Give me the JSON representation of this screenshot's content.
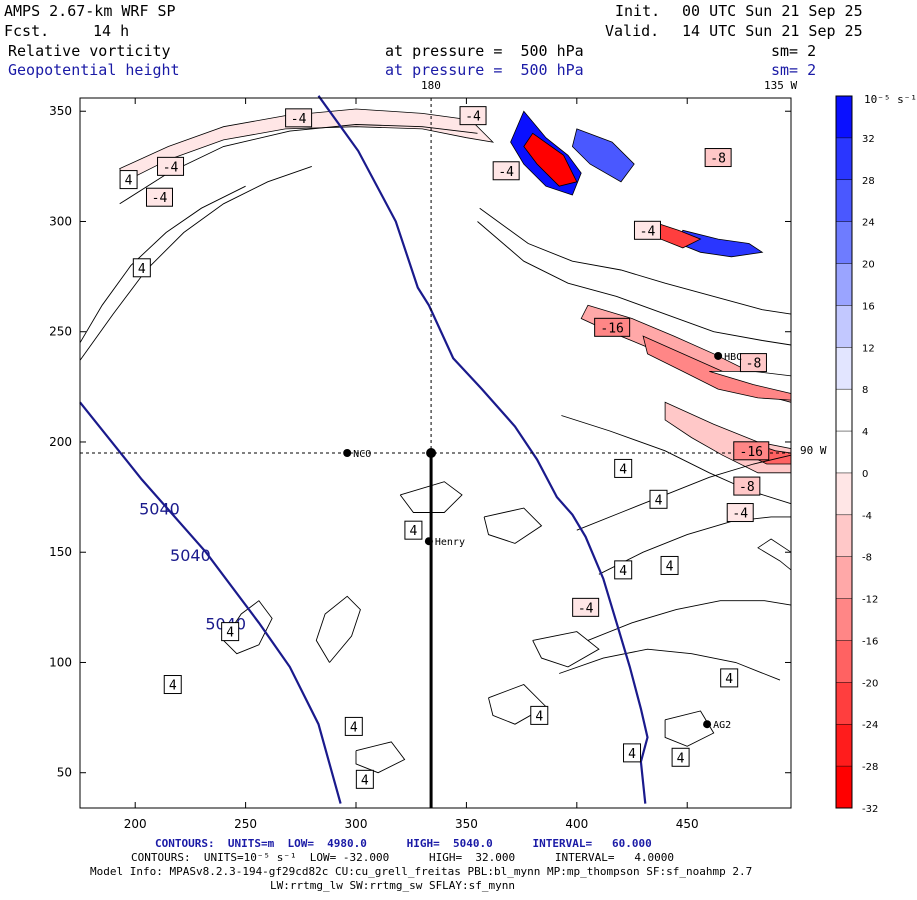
{
  "header": {
    "model_title": "AMPS 2.67-km WRF SP",
    "forecast_label": "Fcst.",
    "forecast_hours": "14 h",
    "init_label": "Init.",
    "init_time": "00 UTC Sun 21 Sep 25",
    "valid_label": "Valid.",
    "valid_time": "14 UTC Sun 21 Sep 25",
    "field1_name": "Relative vorticity",
    "field1_level": "at pressure =  500 hPa",
    "field1_sm": "sm= 2",
    "field2_name": "Geopotential height",
    "field2_level": "at pressure =  500 hPa",
    "field2_sm": "sm= 2"
  },
  "map_labels": {
    "lon_180": "180",
    "lon_135w": "135 W",
    "lat_90w": "90 W",
    "stations": [
      {
        "name": "NCO",
        "x": 296,
        "y": 195
      },
      {
        "name": "Henry",
        "x": 333,
        "y": 155
      },
      {
        "name": "AG2",
        "x": 459,
        "y": 72
      },
      {
        "name": "HBC",
        "x": 464,
        "y": 239
      }
    ]
  },
  "footer": {
    "line1": "CONTOURS:  UNITS=m  LOW=  4980.0      HIGH=  5040.0      INTERVAL=   60.000",
    "line2": "CONTOURS:  UNITS=10⁻⁵ s⁻¹  LOW= -32.000      HIGH=  32.000      INTERVAL=   4.0000",
    "line3": "Model Info: MPASv8.2.3-194-gf29cd82c CU:cu_grell_freitas PBL:bl_mynn MP:mp_thompson SF:sf_noahmp 2.7",
    "line4": "LW:rrtmg_lw SW:rrtmg_sw SFLAY:sf_mynn"
  },
  "chart_data": {
    "type": "contour",
    "title": "Relative vorticity and Geopotential height at 500 hPa",
    "xlim": [
      175,
      497
    ],
    "ylim": [
      34,
      356
    ],
    "x_ticks": [
      200,
      250,
      300,
      350,
      400,
      450
    ],
    "y_ticks": [
      50,
      100,
      150,
      200,
      250,
      300,
      350
    ],
    "colorbar": {
      "units_label": "10⁻⁵ s⁻¹",
      "ticks": [
        32,
        28,
        24,
        20,
        16,
        12,
        8,
        4,
        0,
        -4,
        -8,
        -12,
        -16,
        -20,
        -24,
        -28,
        -32
      ],
      "colors": [
        "#0a10ff",
        "#2a36ff",
        "#4a58ff",
        "#6e7cff",
        "#9aa4ff",
        "#c2c8ff",
        "#e2e5ff",
        "#ffffff",
        "#ffffff",
        "#ffe6e6",
        "#ffc8c8",
        "#ffa8a8",
        "#ff8686",
        "#ff6262",
        "#ff3e3e",
        "#ff1c1c",
        "#ff0000"
      ]
    },
    "height_contours": [
      {
        "label": "5040",
        "points": [
          [
            175,
            218
          ],
          [
            203,
            183
          ],
          [
            232,
            150
          ],
          [
            256,
            118
          ],
          [
            270,
            98
          ],
          [
            283,
            72
          ],
          [
            293,
            36
          ]
        ]
      },
      {
        "label": "",
        "points": [
          [
            283,
            357
          ],
          [
            301,
            332
          ],
          [
            318,
            300
          ],
          [
            328,
            270
          ],
          [
            333,
            262
          ],
          [
            344,
            238
          ],
          [
            357,
            224
          ],
          [
            372,
            207
          ],
          [
            382,
            192
          ],
          [
            391,
            175
          ],
          [
            398,
            167
          ],
          [
            404,
            157
          ],
          [
            412,
            138
          ],
          [
            418,
            118
          ],
          [
            424,
            98
          ],
          [
            429,
            79
          ],
          [
            432,
            66
          ],
          [
            429,
            55
          ],
          [
            431,
            36
          ]
        ]
      }
    ],
    "height_labels": [
      {
        "text": "5040",
        "x": 211,
        "y": 167
      },
      {
        "text": "5040",
        "x": 225,
        "y": 146
      },
      {
        "text": "5040",
        "x": 241,
        "y": 115
      }
    ],
    "vorticity_labels": [
      {
        "text": "-4",
        "x": 274,
        "y": 347
      },
      {
        "text": "-4",
        "x": 353,
        "y": 348
      },
      {
        "text": "-4",
        "x": 216,
        "y": 325
      },
      {
        "text": "-4",
        "x": 211,
        "y": 311
      },
      {
        "text": "4",
        "x": 197,
        "y": 319
      },
      {
        "text": "4",
        "x": 203,
        "y": 279
      },
      {
        "text": "-4",
        "x": 368,
        "y": 323
      },
      {
        "text": "-8",
        "x": 464,
        "y": 329
      },
      {
        "text": "-4",
        "x": 432,
        "y": 296
      },
      {
        "text": "-16",
        "x": 416,
        "y": 252
      },
      {
        "text": "-8",
        "x": 480,
        "y": 236
      },
      {
        "text": "-16",
        "x": 479,
        "y": 196
      },
      {
        "text": "-8",
        "x": 477,
        "y": 180
      },
      {
        "text": "-4",
        "x": 474,
        "y": 168
      },
      {
        "text": "4",
        "x": 421,
        "y": 188
      },
      {
        "text": "4",
        "x": 437,
        "y": 174
      },
      {
        "text": "4",
        "x": 326,
        "y": 160
      },
      {
        "text": "4",
        "x": 421,
        "y": 142
      },
      {
        "text": "4",
        "x": 442,
        "y": 144
      },
      {
        "text": "-4",
        "x": 404,
        "y": 125
      },
      {
        "text": "4",
        "x": 469,
        "y": 93
      },
      {
        "text": "4",
        "x": 383,
        "y": 76
      },
      {
        "text": "4",
        "x": 425,
        "y": 59
      },
      {
        "text": "4",
        "x": 447,
        "y": 57
      },
      {
        "text": "4",
        "x": 299,
        "y": 71
      },
      {
        "text": "4",
        "x": 304,
        "y": 47
      },
      {
        "text": "4",
        "x": 243,
        "y": 114
      },
      {
        "text": "4",
        "x": 217,
        "y": 90
      }
    ],
    "vorticity_regions": [
      {
        "value": -4,
        "points": [
          [
            193,
            324
          ],
          [
            215,
            334
          ],
          [
            240,
            343
          ],
          [
            268,
            348
          ],
          [
            300,
            351
          ],
          [
            330,
            349
          ],
          [
            352,
            346
          ],
          [
            362,
            336
          ],
          [
            350,
            338
          ],
          [
            330,
            342
          ],
          [
            300,
            343
          ],
          [
            268,
            342
          ],
          [
            240,
            337
          ],
          [
            215,
            328
          ],
          [
            195,
            318
          ]
        ]
      },
      {
        "value": -12,
        "points": [
          [
            405,
            262
          ],
          [
            425,
            256
          ],
          [
            444,
            248
          ],
          [
            462,
            240
          ],
          [
            478,
            232
          ],
          [
            497,
            228
          ],
          [
            497,
            218
          ],
          [
            482,
            222
          ],
          [
            466,
            226
          ],
          [
            450,
            234
          ],
          [
            432,
            243
          ],
          [
            415,
            250
          ],
          [
            402,
            256
          ]
        ]
      },
      {
        "value": -16,
        "points": [
          [
            430,
            248
          ],
          [
            448,
            240
          ],
          [
            466,
            232
          ],
          [
            486,
            226
          ],
          [
            497,
            224
          ],
          [
            497,
            219
          ],
          [
            482,
            220
          ],
          [
            464,
            224
          ],
          [
            448,
            232
          ],
          [
            432,
            240
          ]
        ]
      },
      {
        "value": -8,
        "points": [
          [
            440,
            218
          ],
          [
            462,
            208
          ],
          [
            482,
            200
          ],
          [
            497,
            197
          ],
          [
            497,
            186
          ],
          [
            482,
            186
          ],
          [
            466,
            194
          ],
          [
            452,
            202
          ],
          [
            440,
            210
          ]
        ]
      },
      {
        "value": -20,
        "points": [
          [
            478,
            200
          ],
          [
            490,
            196
          ],
          [
            497,
            195
          ],
          [
            497,
            190
          ],
          [
            486,
            190
          ],
          [
            478,
            194
          ]
        ]
      },
      {
        "value": 32,
        "points": [
          [
            376,
            350
          ],
          [
            386,
            338
          ],
          [
            396,
            330
          ],
          [
            402,
            322
          ],
          [
            398,
            312
          ],
          [
            386,
            316
          ],
          [
            376,
            326
          ],
          [
            370,
            336
          ]
        ]
      },
      {
        "value": 24,
        "points": [
          [
            400,
            342
          ],
          [
            416,
            336
          ],
          [
            426,
            326
          ],
          [
            420,
            318
          ],
          [
            406,
            326
          ],
          [
            398,
            334
          ]
        ]
      },
      {
        "value": -32,
        "points": [
          [
            380,
            340
          ],
          [
            394,
            330
          ],
          [
            400,
            318
          ],
          [
            392,
            316
          ],
          [
            382,
            326
          ],
          [
            376,
            334
          ]
        ]
      },
      {
        "value": 28,
        "points": [
          [
            448,
            296
          ],
          [
            464,
            292
          ],
          [
            478,
            290
          ],
          [
            484,
            286
          ],
          [
            470,
            284
          ],
          [
            456,
            286
          ],
          [
            446,
            290
          ]
        ]
      },
      {
        "value": -24,
        "points": [
          [
            434,
            300
          ],
          [
            446,
            296
          ],
          [
            456,
            292
          ],
          [
            448,
            288
          ],
          [
            438,
            292
          ]
        ]
      },
      {
        "value": 4,
        "points": [
          [
            460,
            232
          ],
          [
            480,
            226
          ],
          [
            497,
            222
          ],
          [
            497,
            230
          ],
          [
            480,
            232
          ]
        ]
      },
      {
        "value": 4,
        "points": [
          [
            482,
            152
          ],
          [
            492,
            146
          ],
          [
            497,
            142
          ],
          [
            497,
            150
          ],
          [
            488,
            156
          ]
        ]
      }
    ],
    "thin_contours": [
      [
        [
          193,
          308
        ],
        [
          215,
          322
        ],
        [
          240,
          334
        ],
        [
          270,
          341
        ],
        [
          300,
          344
        ],
        [
          330,
          343
        ],
        [
          355,
          340
        ]
      ],
      [
        [
          175,
          237
        ],
        [
          190,
          258
        ],
        [
          205,
          278
        ],
        [
          222,
          295
        ],
        [
          240,
          308
        ],
        [
          260,
          318
        ],
        [
          280,
          325
        ]
      ],
      [
        [
          175,
          245
        ],
        [
          185,
          262
        ],
        [
          198,
          280
        ],
        [
          214,
          295
        ],
        [
          230,
          306
        ],
        [
          250,
          316
        ]
      ],
      [
        [
          356,
          306
        ],
        [
          378,
          290
        ],
        [
          398,
          282
        ],
        [
          420,
          278
        ],
        [
          440,
          272
        ],
        [
          462,
          266
        ],
        [
          484,
          260
        ],
        [
          497,
          258
        ]
      ],
      [
        [
          355,
          300
        ],
        [
          376,
          282
        ],
        [
          396,
          272
        ],
        [
          418,
          266
        ],
        [
          440,
          258
        ],
        [
          462,
          250
        ],
        [
          484,
          246
        ],
        [
          497,
          244
        ]
      ],
      [
        [
          393,
          212
        ],
        [
          415,
          205
        ],
        [
          440,
          196
        ],
        [
          460,
          186
        ],
        [
          478,
          178
        ],
        [
          497,
          172
        ]
      ],
      [
        [
          400,
          160
        ],
        [
          420,
          168
        ],
        [
          440,
          176
        ],
        [
          460,
          184
        ],
        [
          480,
          190
        ],
        [
          497,
          194
        ]
      ],
      [
        [
          410,
          140
        ],
        [
          430,
          150
        ],
        [
          450,
          158
        ],
        [
          470,
          164
        ],
        [
          488,
          166
        ],
        [
          497,
          166
        ]
      ],
      [
        [
          405,
          110
        ],
        [
          425,
          118
        ],
        [
          445,
          124
        ],
        [
          465,
          128
        ],
        [
          485,
          128
        ],
        [
          497,
          126
        ]
      ],
      [
        [
          392,
          95
        ],
        [
          412,
          102
        ],
        [
          432,
          106
        ],
        [
          452,
          104
        ],
        [
          472,
          100
        ],
        [
          492,
          92
        ]
      ],
      [
        [
          288,
          100
        ],
        [
          298,
          112
        ],
        [
          302,
          124
        ],
        [
          296,
          130
        ],
        [
          286,
          122
        ],
        [
          282,
          110
        ],
        [
          288,
          100
        ]
      ],
      [
        [
          240,
          110
        ],
        [
          248,
          122
        ],
        [
          256,
          128
        ],
        [
          262,
          120
        ],
        [
          256,
          108
        ],
        [
          246,
          104
        ],
        [
          240,
          110
        ]
      ],
      [
        [
          300,
          60
        ],
        [
          316,
          64
        ],
        [
          322,
          56
        ],
        [
          310,
          50
        ],
        [
          300,
          54
        ],
        [
          300,
          60
        ]
      ],
      [
        [
          320,
          176
        ],
        [
          340,
          182
        ],
        [
          348,
          176
        ],
        [
          340,
          168
        ],
        [
          326,
          168
        ],
        [
          320,
          176
        ]
      ],
      [
        [
          358,
          166
        ],
        [
          376,
          170
        ],
        [
          384,
          162
        ],
        [
          372,
          154
        ],
        [
          360,
          158
        ],
        [
          358,
          166
        ]
      ],
      [
        [
          380,
          110
        ],
        [
          400,
          114
        ],
        [
          410,
          106
        ],
        [
          396,
          98
        ],
        [
          384,
          102
        ],
        [
          380,
          110
        ]
      ],
      [
        [
          360,
          84
        ],
        [
          376,
          90
        ],
        [
          386,
          80
        ],
        [
          372,
          72
        ],
        [
          362,
          76
        ],
        [
          360,
          84
        ]
      ],
      [
        [
          440,
          74
        ],
        [
          456,
          78
        ],
        [
          462,
          68
        ],
        [
          450,
          62
        ],
        [
          440,
          66
        ],
        [
          440,
          74
        ]
      ]
    ],
    "crosshair": {
      "x": 334,
      "y": 195
    },
    "vertical_line": {
      "x": 334,
      "y_from": 34,
      "y_to": 195
    }
  }
}
